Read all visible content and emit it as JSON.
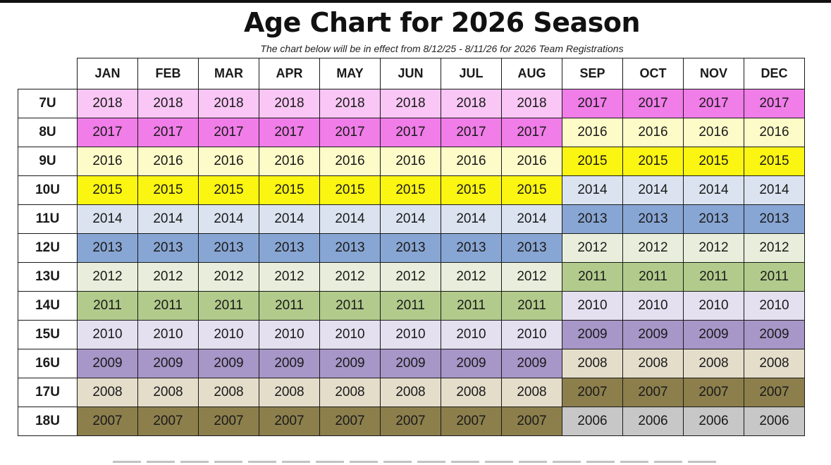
{
  "title": "Age Chart for 2026 Season",
  "subtitle": "The chart below will be in effect from 8/12/25 - 8/11/26 for 2026 Team Registrations",
  "table": {
    "months": [
      "JAN",
      "FEB",
      "MAR",
      "APR",
      "MAY",
      "JUN",
      "JUL",
      "AUG",
      "SEP",
      "OCT",
      "NOV",
      "DEC"
    ],
    "rows": [
      {
        "age": "7U",
        "years": [
          "2018",
          "2018",
          "2018",
          "2018",
          "2018",
          "2018",
          "2018",
          "2018",
          "2017",
          "2017",
          "2017",
          "2017"
        ]
      },
      {
        "age": "8U",
        "years": [
          "2017",
          "2017",
          "2017",
          "2017",
          "2017",
          "2017",
          "2017",
          "2017",
          "2016",
          "2016",
          "2016",
          "2016"
        ]
      },
      {
        "age": "9U",
        "years": [
          "2016",
          "2016",
          "2016",
          "2016",
          "2016",
          "2016",
          "2016",
          "2016",
          "2015",
          "2015",
          "2015",
          "2015"
        ]
      },
      {
        "age": "10U",
        "years": [
          "2015",
          "2015",
          "2015",
          "2015",
          "2015",
          "2015",
          "2015",
          "2015",
          "2014",
          "2014",
          "2014",
          "2014"
        ]
      },
      {
        "age": "11U",
        "years": [
          "2014",
          "2014",
          "2014",
          "2014",
          "2014",
          "2014",
          "2014",
          "2014",
          "2013",
          "2013",
          "2013",
          "2013"
        ]
      },
      {
        "age": "12U",
        "years": [
          "2013",
          "2013",
          "2013",
          "2013",
          "2013",
          "2013",
          "2013",
          "2013",
          "2012",
          "2012",
          "2012",
          "2012"
        ]
      },
      {
        "age": "13U",
        "years": [
          "2012",
          "2012",
          "2012",
          "2012",
          "2012",
          "2012",
          "2012",
          "2012",
          "2011",
          "2011",
          "2011",
          "2011"
        ]
      },
      {
        "age": "14U",
        "years": [
          "2011",
          "2011",
          "2011",
          "2011",
          "2011",
          "2011",
          "2011",
          "2011",
          "2010",
          "2010",
          "2010",
          "2010"
        ]
      },
      {
        "age": "15U",
        "years": [
          "2010",
          "2010",
          "2010",
          "2010",
          "2010",
          "2010",
          "2010",
          "2010",
          "2009",
          "2009",
          "2009",
          "2009"
        ]
      },
      {
        "age": "16U",
        "years": [
          "2009",
          "2009",
          "2009",
          "2009",
          "2009",
          "2009",
          "2009",
          "2009",
          "2008",
          "2008",
          "2008",
          "2008"
        ]
      },
      {
        "age": "17U",
        "years": [
          "2008",
          "2008",
          "2008",
          "2008",
          "2008",
          "2008",
          "2008",
          "2008",
          "2007",
          "2007",
          "2007",
          "2007"
        ]
      },
      {
        "age": "18U",
        "years": [
          "2007",
          "2007",
          "2007",
          "2007",
          "2007",
          "2007",
          "2007",
          "2007",
          "2006",
          "2006",
          "2006",
          "2006"
        ]
      }
    ]
  },
  "year_colors": {
    "2018": "#f9c6f5",
    "2017": "#f07de8",
    "2016": "#fdfbc8",
    "2015": "#fbf512",
    "2014": "#dbe3f0",
    "2013": "#88a6d4",
    "2012": "#e8eedb",
    "2011": "#b2cb8c",
    "2010": "#e4e0f0",
    "2009": "#a796c8",
    "2008": "#e3ddca",
    "2007": "#8c7f4c",
    "2006": "#c7c7c7"
  }
}
